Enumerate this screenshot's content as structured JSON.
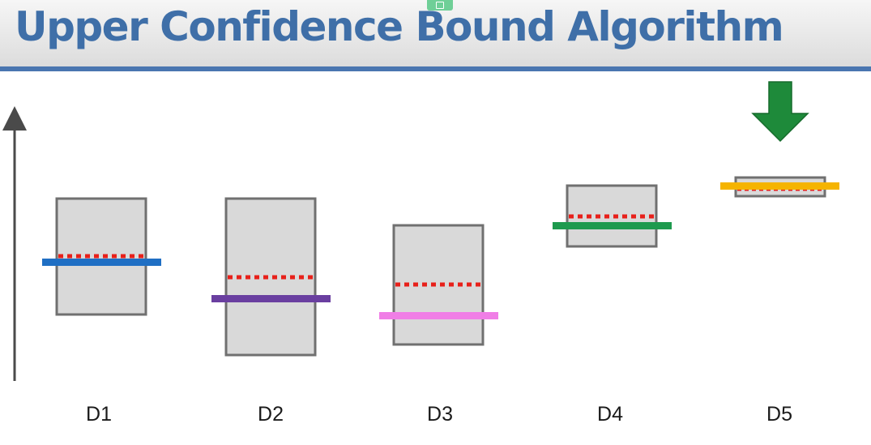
{
  "title": "Upper Confidence Bound Algorithm",
  "colors": {
    "title": "#3f6fa8",
    "header_rule": "#4a76b0",
    "box_fill": "#d9d9d9",
    "box_stroke": "#707070",
    "dotted_line": "#e8201a",
    "axis": "#4a4a4a",
    "arrow": "#1e8a3a"
  },
  "selection_arrow": {
    "icon": "green-down-arrow-icon",
    "target": "D5"
  },
  "distributions": [
    {
      "label": "D1",
      "line_color": "#1f6fc4"
    },
    {
      "label": "D2",
      "line_color": "#6a3fa0"
    },
    {
      "label": "D3",
      "line_color": "#f07ee6"
    },
    {
      "label": "D4",
      "line_color": "#1e9a4e"
    },
    {
      "label": "D5",
      "line_color": "#f5b400"
    }
  ]
}
